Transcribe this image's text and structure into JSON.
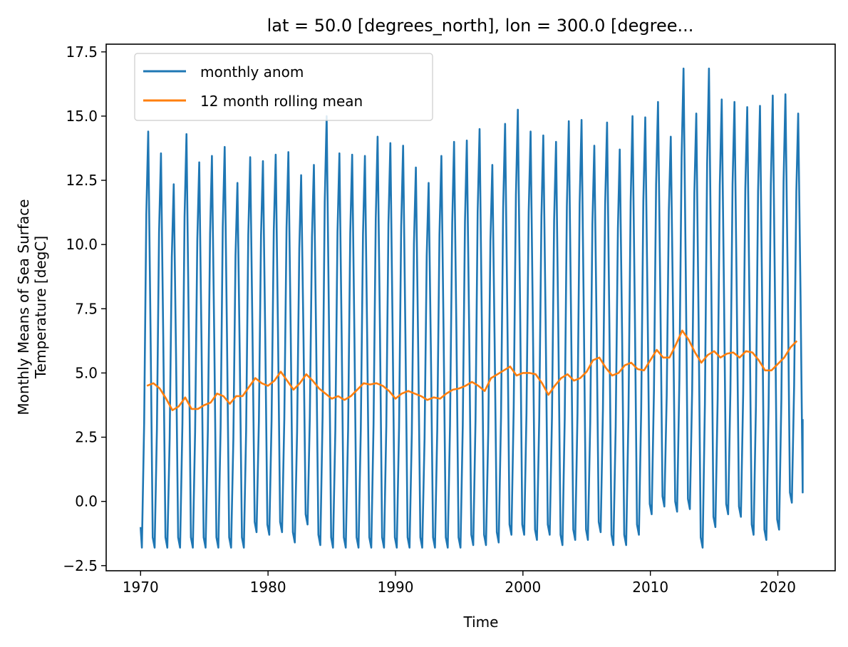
{
  "chart_data": {
    "type": "line",
    "title": "lat = 50.0 [degrees_north], lon = 300.0 [degree...",
    "xlabel": "Time",
    "ylabel_line1": "Monthly Means of Sea Surface",
    "ylabel_line2": "Temperature [degC]",
    "xlim": [
      1967.3,
      2024.5
    ],
    "ylim": [
      -2.7,
      17.8
    ],
    "xticks": [
      1970,
      1980,
      1990,
      2000,
      2010,
      2020
    ],
    "yticks": [
      -2.5,
      0.0,
      2.5,
      5.0,
      7.5,
      10.0,
      12.5,
      15.0,
      17.5
    ],
    "grid": false,
    "legend": "upper-left",
    "colors": {
      "monthly": "#1f77b4",
      "rolling": "#ff7f0e"
    },
    "series": [
      {
        "name": "monthly anom",
        "x_start": 1970.0,
        "x_step": 0.08333,
        "annual_max": [
          14.4,
          13.55,
          12.35,
          14.3,
          13.2,
          13.45,
          13.8,
          12.4,
          13.4,
          13.25,
          13.5,
          13.6,
          12.7,
          13.1,
          15.0,
          13.55,
          13.5,
          13.45,
          14.2,
          13.95,
          13.85,
          13.0,
          12.4,
          13.45,
          14.0,
          14.05,
          14.5,
          13.1,
          14.7,
          15.25,
          14.4,
          14.25,
          14.0,
          14.8,
          14.85,
          13.85,
          14.75,
          13.7,
          15.0,
          14.95,
          15.55,
          14.2,
          16.85,
          15.1,
          16.85,
          15.65,
          15.55,
          15.35,
          15.4,
          15.8,
          15.85,
          15.1
        ],
        "annual_min": [
          -1.8,
          -1.8,
          -1.8,
          -1.8,
          -1.8,
          -1.8,
          -1.8,
          -1.8,
          -1.8,
          -1.2,
          -1.3,
          -1.2,
          -1.6,
          -0.9,
          -1.7,
          -1.8,
          -1.8,
          -1.8,
          -1.8,
          -1.8,
          -1.8,
          -1.8,
          -1.8,
          -1.8,
          -1.8,
          -1.8,
          -1.7,
          -1.7,
          -1.6,
          -1.3,
          -1.3,
          -1.5,
          -1.3,
          -1.7,
          -1.5,
          -1.5,
          -1.2,
          -1.7,
          -1.7,
          -1.3,
          -0.5,
          -0.2,
          -0.4,
          -0.3,
          -1.8,
          -1.0,
          -0.5,
          -0.6,
          -1.3,
          -1.5,
          -1.1,
          -0.05
        ],
        "first_value": -1.0,
        "last_value": 3.2
      },
      {
        "name": "12 month rolling mean",
        "x": [
          1970.5,
          1971.0,
          1971.5,
          1972.0,
          1972.5,
          1973.0,
          1973.5,
          1974.0,
          1974.5,
          1975.0,
          1975.5,
          1976.0,
          1976.5,
          1977.0,
          1977.5,
          1978.0,
          1978.5,
          1979.0,
          1979.5,
          1980.0,
          1980.5,
          1981.0,
          1981.5,
          1982.0,
          1982.5,
          1983.0,
          1983.5,
          1984.0,
          1984.5,
          1985.0,
          1985.5,
          1986.0,
          1986.5,
          1987.0,
          1987.5,
          1988.0,
          1988.5,
          1989.0,
          1989.5,
          1990.0,
          1990.5,
          1991.0,
          1991.5,
          1992.0,
          1992.5,
          1993.0,
          1993.5,
          1994.0,
          1994.5,
          1995.0,
          1995.5,
          1996.0,
          1996.5,
          1997.0,
          1997.5,
          1998.0,
          1998.5,
          1999.0,
          1999.5,
          2000.0,
          2000.5,
          2001.0,
          2001.5,
          2002.0,
          2002.5,
          2003.0,
          2003.5,
          2004.0,
          2004.5,
          2005.0,
          2005.5,
          2006.0,
          2006.5,
          2007.0,
          2007.5,
          2008.0,
          2008.5,
          2009.0,
          2009.5,
          2010.0,
          2010.5,
          2011.0,
          2011.5,
          2012.0,
          2012.5,
          2013.0,
          2013.5,
          2014.0,
          2014.5,
          2015.0,
          2015.5,
          2016.0,
          2016.5,
          2017.0,
          2017.5,
          2018.0,
          2018.5,
          2019.0,
          2019.5,
          2020.0,
          2020.5,
          2021.0,
          2021.5
        ],
        "y": [
          4.5,
          4.6,
          4.4,
          4.0,
          3.55,
          3.7,
          4.05,
          3.6,
          3.6,
          3.75,
          3.85,
          4.2,
          4.1,
          3.8,
          4.1,
          4.1,
          4.45,
          4.8,
          4.6,
          4.5,
          4.7,
          5.05,
          4.7,
          4.35,
          4.6,
          4.95,
          4.7,
          4.4,
          4.2,
          4.0,
          4.1,
          3.95,
          4.1,
          4.35,
          4.6,
          4.55,
          4.6,
          4.5,
          4.3,
          4.0,
          4.2,
          4.3,
          4.2,
          4.1,
          3.95,
          4.05,
          4.0,
          4.2,
          4.35,
          4.4,
          4.5,
          4.65,
          4.5,
          4.3,
          4.8,
          4.95,
          5.1,
          5.25,
          4.9,
          5.0,
          5.0,
          4.95,
          4.6,
          4.15,
          4.5,
          4.8,
          4.95,
          4.7,
          4.8,
          5.05,
          5.5,
          5.6,
          5.2,
          4.9,
          5.0,
          5.3,
          5.4,
          5.15,
          5.1,
          5.5,
          5.9,
          5.6,
          5.6,
          6.1,
          6.65,
          6.3,
          5.8,
          5.4,
          5.7,
          5.85,
          5.6,
          5.75,
          5.8,
          5.6,
          5.85,
          5.8,
          5.5,
          5.1,
          5.1,
          5.35,
          5.6,
          6.0,
          6.25
        ]
      }
    ]
  }
}
